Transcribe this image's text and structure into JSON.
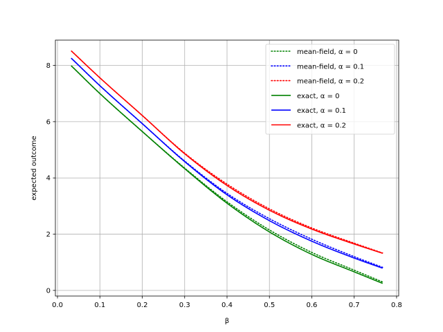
{
  "chart_data": {
    "type": "line",
    "xlabel": "β",
    "ylabel": "expected outcome",
    "xlim": [
      -0.005,
      0.805
    ],
    "ylim": [
      -0.2,
      8.9
    ],
    "xticks": [
      0.0,
      0.1,
      0.2,
      0.3,
      0.4,
      0.5,
      0.6,
      0.7,
      0.8
    ],
    "xtick_labels": [
      "0.0",
      "0.1",
      "0.2",
      "0.3",
      "0.4",
      "0.5",
      "0.6",
      "0.7",
      "0.8"
    ],
    "yticks": [
      0,
      2,
      4,
      6,
      8
    ],
    "ytick_labels": [
      "0",
      "2",
      "4",
      "6",
      "8"
    ],
    "grid": true,
    "legend_position": "top-right",
    "series": [
      {
        "name": "mean-field, α = 0",
        "color": "#008000",
        "style": "dotted",
        "x": [
          0.033,
          0.1,
          0.2,
          0.3,
          0.4,
          0.5,
          0.6,
          0.7,
          0.767
        ],
        "y": [
          7.98,
          7.0,
          5.65,
          4.35,
          3.15,
          2.15,
          1.35,
          0.72,
          0.3
        ]
      },
      {
        "name": "mean-field, α = 0.1",
        "color": "#0000ff",
        "style": "dotted",
        "x": [
          0.033,
          0.1,
          0.2,
          0.3,
          0.4,
          0.5,
          0.6,
          0.7,
          0.767
        ],
        "y": [
          8.25,
          7.28,
          5.93,
          4.6,
          3.45,
          2.55,
          1.82,
          1.2,
          0.82
        ]
      },
      {
        "name": "mean-field, α = 0.2",
        "color": "#ff0000",
        "style": "dotted",
        "x": [
          0.033,
          0.1,
          0.2,
          0.3,
          0.4,
          0.5,
          0.6,
          0.7,
          0.767
        ],
        "y": [
          8.51,
          7.56,
          6.22,
          4.88,
          3.78,
          2.9,
          2.22,
          1.68,
          1.33
        ]
      },
      {
        "name": "exact, α = 0",
        "color": "#008000",
        "style": "solid",
        "x": [
          0.033,
          0.1,
          0.2,
          0.3,
          0.4,
          0.5,
          0.6,
          0.7,
          0.767
        ],
        "y": [
          7.98,
          7.0,
          5.65,
          4.33,
          3.1,
          2.08,
          1.28,
          0.66,
          0.25
        ]
      },
      {
        "name": "exact, α = 0.1",
        "color": "#0000ff",
        "style": "solid",
        "x": [
          0.033,
          0.1,
          0.2,
          0.3,
          0.4,
          0.5,
          0.6,
          0.7,
          0.767
        ],
        "y": [
          8.25,
          7.28,
          5.93,
          4.58,
          3.4,
          2.48,
          1.75,
          1.15,
          0.79
        ]
      },
      {
        "name": "exact, α = 0.2",
        "color": "#ff0000",
        "style": "solid",
        "x": [
          0.033,
          0.1,
          0.2,
          0.3,
          0.4,
          0.5,
          0.6,
          0.7,
          0.767
        ],
        "y": [
          8.51,
          7.56,
          6.22,
          4.86,
          3.73,
          2.85,
          2.18,
          1.65,
          1.32
        ]
      }
    ]
  }
}
